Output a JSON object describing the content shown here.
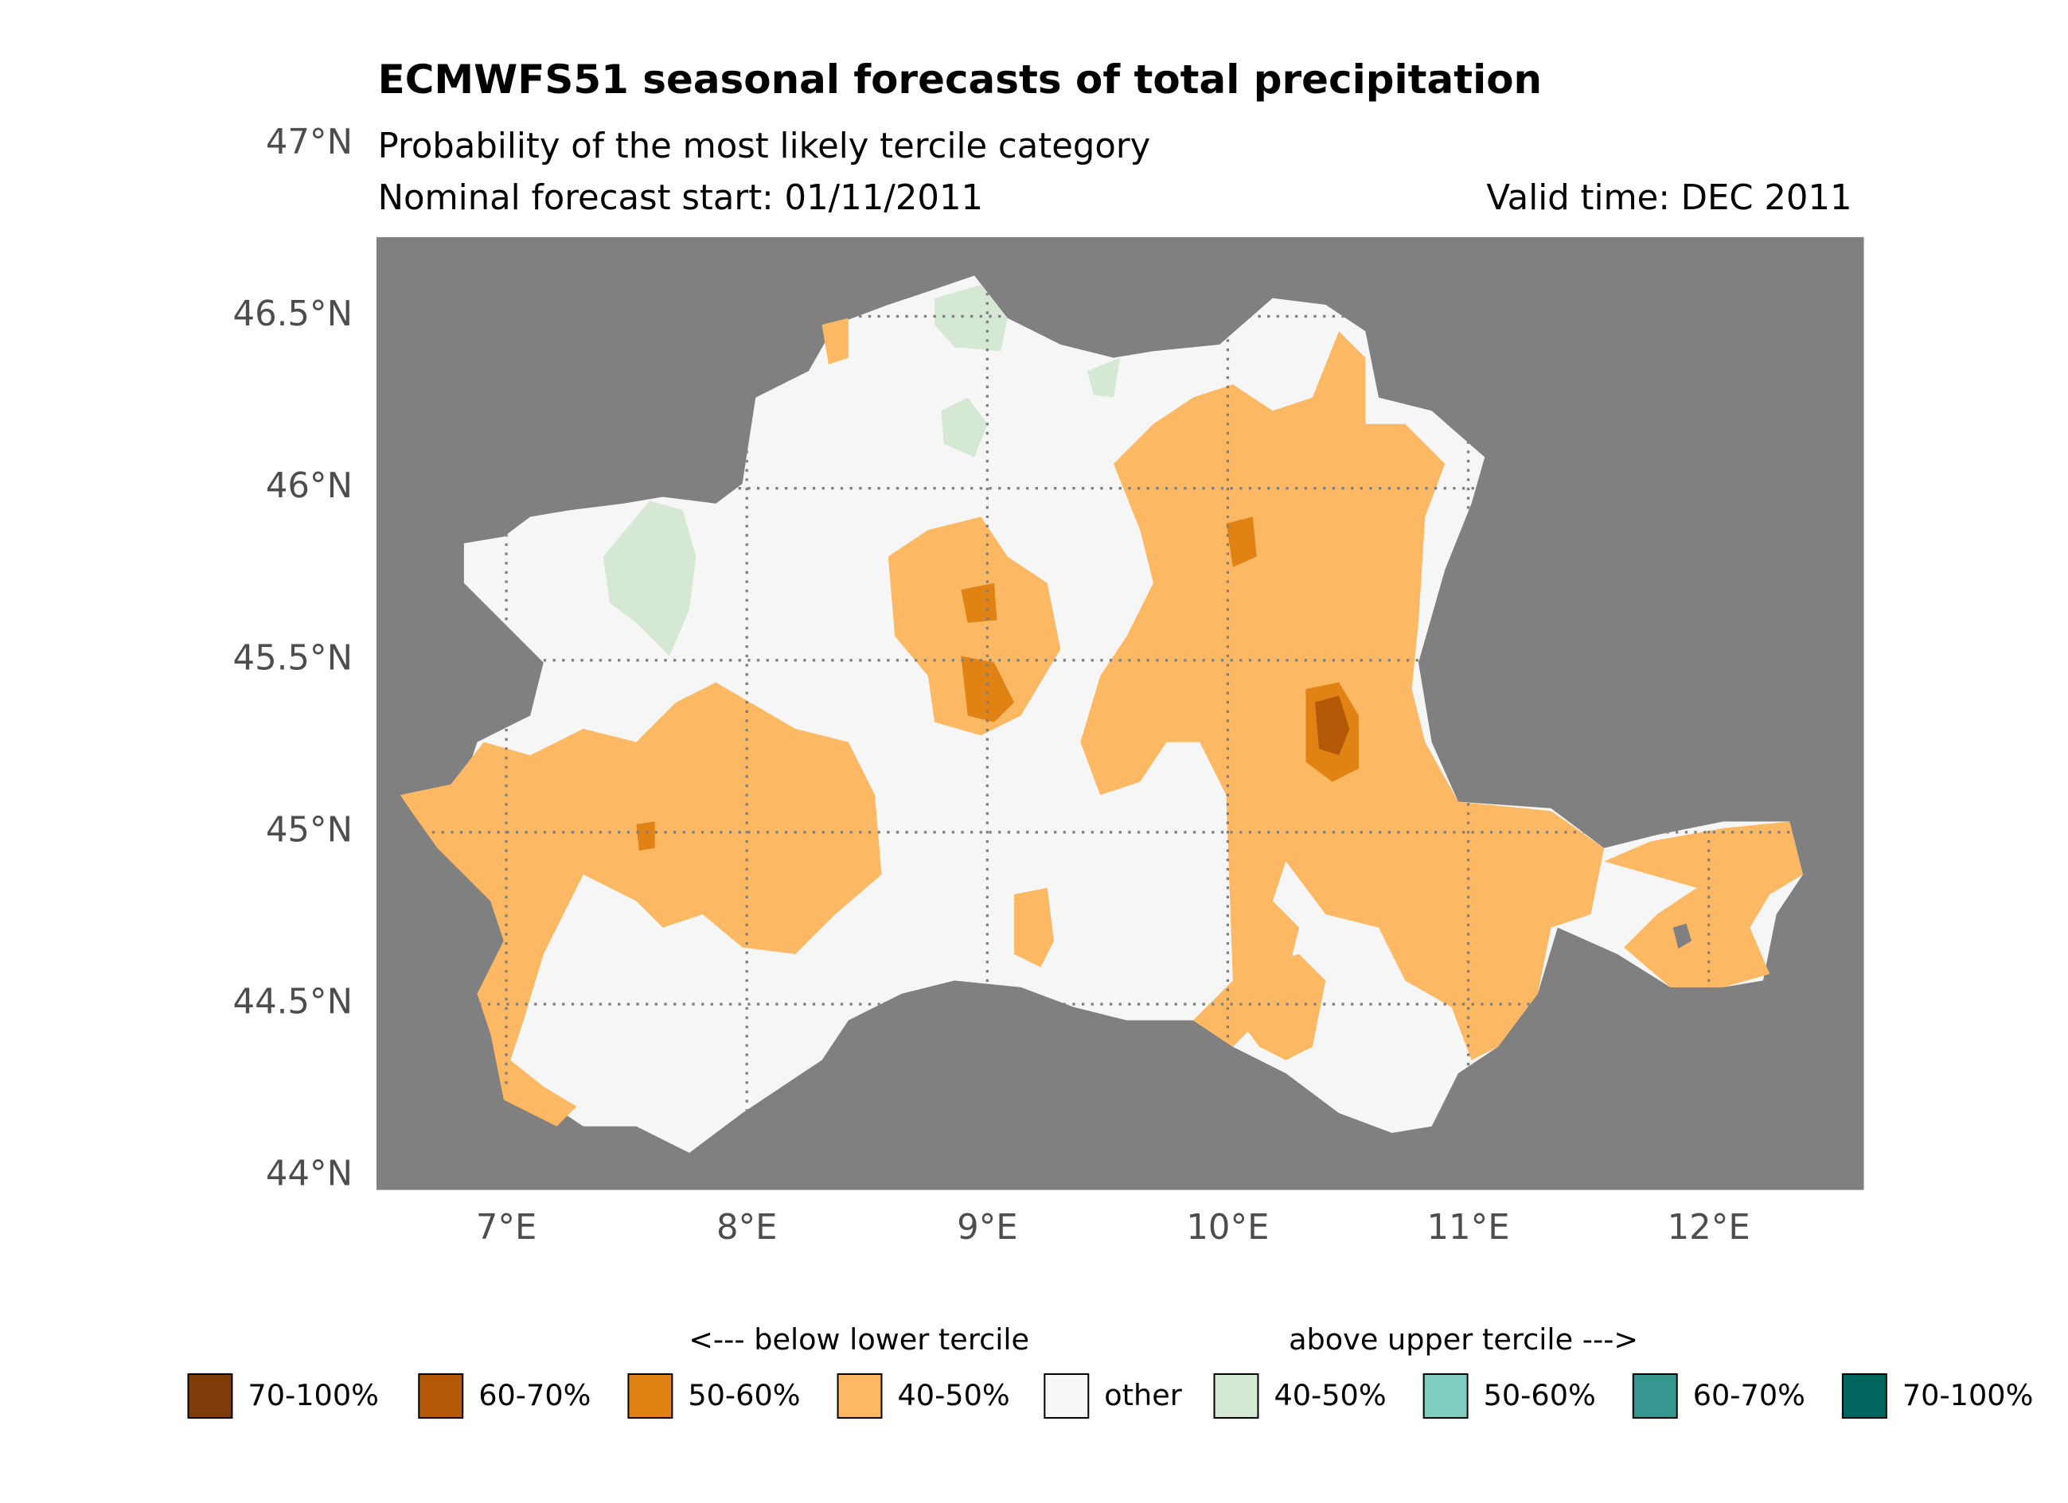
{
  "chart_data": {
    "type": "map",
    "title": "ECMWFS51 seasonal forecasts of total precipitation",
    "subtitle": "Probability of the most likely tercile category",
    "forecast_start": "Nominal forecast start: 01/11/2011",
    "valid_time": "Valid time: DEC 2011",
    "xlim": [
      6.46,
      12.645
    ],
    "ylim": [
      43.96,
      46.73
    ],
    "xticks": [
      {
        "value": 7,
        "label": "7°E"
      },
      {
        "value": 8,
        "label": "8°E"
      },
      {
        "value": 9,
        "label": "9°E"
      },
      {
        "value": 10,
        "label": "10°E"
      },
      {
        "value": 11,
        "label": "11°E"
      },
      {
        "value": 12,
        "label": "12°E"
      }
    ],
    "yticks": [
      {
        "value": 44,
        "label": "44°N"
      },
      {
        "value": 44.5,
        "label": "44.5°N"
      },
      {
        "value": 45,
        "label": "45°N"
      },
      {
        "value": 45.5,
        "label": "45.5°N"
      },
      {
        "value": 46,
        "label": "46°N"
      },
      {
        "value": 46.5,
        "label": "46.5°N"
      },
      {
        "value": 47,
        "label": "47°N"
      }
    ],
    "grid": true,
    "legend": {
      "below_label": "<--- below lower tercile",
      "above_label": "above upper tercile --->",
      "items": [
        {
          "label": "70-100%",
          "color": "#7f3b08"
        },
        {
          "label": "60-70%",
          "color": "#b35806"
        },
        {
          "label": "50-60%",
          "color": "#e08214"
        },
        {
          "label": "40-50%",
          "color": "#fdb863"
        },
        {
          "label": "other",
          "color": "#f7f7f7"
        },
        {
          "label": "40-50%",
          "color": "#d5e8d4"
        },
        {
          "label": "50-60%",
          "color": "#80cdc1"
        },
        {
          "label": "60-70%",
          "color": "#35978f"
        },
        {
          "label": "70-100%",
          "color": "#01665e"
        }
      ]
    }
  }
}
